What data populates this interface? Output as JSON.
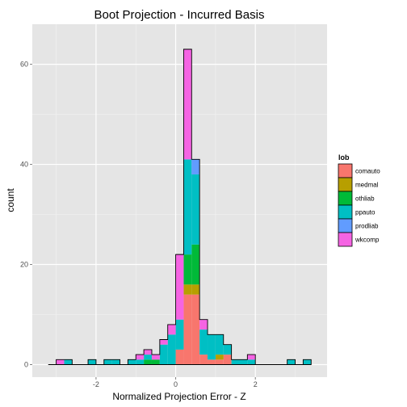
{
  "chart_data": {
    "type": "bar",
    "title": "Boot Projection - Incurred Basis",
    "xlabel": "Normalized Projection Error - Z",
    "ylabel": "count",
    "xlim": [
      -3.6,
      3.8
    ],
    "ylim": [
      -2.5,
      68
    ],
    "x_ticks": [
      -2,
      0,
      2
    ],
    "x_tick_labels": [
      "-2",
      "0",
      "2"
    ],
    "y_ticks": [
      0,
      20,
      40,
      60
    ],
    "y_tick_labels": [
      "0",
      "20",
      "40",
      "60"
    ],
    "grid": true,
    "legend_position": "right",
    "legend_title": "lob",
    "bin_start": -3.2,
    "bin_width": 0.2,
    "series": [
      {
        "name": "comauto",
        "color": "#F8766D",
        "values": [
          0,
          0,
          0,
          0,
          0,
          0,
          0,
          0,
          0,
          0,
          0,
          0,
          0,
          0,
          0,
          0,
          3,
          14,
          14,
          2,
          1,
          1,
          2,
          0,
          0,
          0,
          0,
          0,
          0,
          0,
          0,
          0,
          0
        ]
      },
      {
        "name": "medmal",
        "color": "#B79F00",
        "values": [
          0,
          0,
          0,
          0,
          0,
          0,
          0,
          0,
          0,
          0,
          0,
          0,
          0,
          0,
          0,
          0,
          0,
          2,
          2,
          0,
          0,
          1,
          0,
          0,
          0,
          0,
          0,
          0,
          0,
          0,
          0,
          0,
          0
        ]
      },
      {
        "name": "othliab",
        "color": "#00BA38",
        "values": [
          0,
          0,
          0,
          0,
          0,
          0,
          0,
          0,
          0,
          0,
          0,
          0,
          1,
          1,
          0,
          0,
          0,
          6,
          8,
          0,
          0,
          0,
          0,
          0,
          0,
          0,
          0,
          0,
          0,
          0,
          0,
          0,
          0
        ]
      },
      {
        "name": "ppauto",
        "color": "#00BFC4",
        "values": [
          0,
          0,
          1,
          0,
          0,
          1,
          0,
          1,
          1,
          0,
          1,
          1,
          1,
          0,
          4,
          6,
          6,
          19,
          14,
          5,
          5,
          4,
          2,
          1,
          1,
          1,
          0,
          0,
          0,
          0,
          1,
          0,
          1
        ]
      },
      {
        "name": "prodliab",
        "color": "#619CFF",
        "values": [
          0,
          0,
          0,
          0,
          0,
          0,
          0,
          0,
          0,
          0,
          0,
          0,
          0,
          0,
          0,
          0,
          0,
          0,
          3,
          0,
          0,
          0,
          0,
          0,
          0,
          0,
          0,
          0,
          0,
          0,
          0,
          0,
          0
        ]
      },
      {
        "name": "wkcomp",
        "color": "#F564E3",
        "values": [
          0,
          1,
          0,
          0,
          0,
          0,
          0,
          0,
          0,
          0,
          0,
          1,
          1,
          1,
          1,
          2,
          13,
          22,
          0,
          2,
          0,
          0,
          0,
          0,
          0,
          1,
          0,
          0,
          0,
          0,
          0,
          0,
          0
        ]
      }
    ]
  }
}
